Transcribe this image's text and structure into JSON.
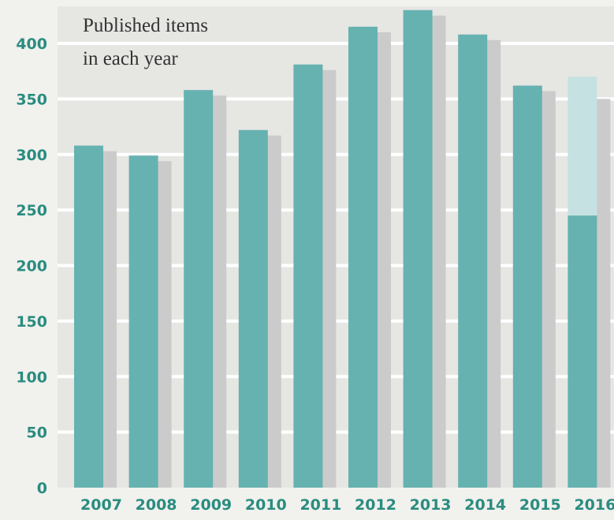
{
  "chart_data": {
    "type": "bar",
    "title_lines": [
      "Published items",
      "in each year"
    ],
    "xlabel": "",
    "ylabel": "",
    "categories": [
      "2007",
      "2008",
      "2009",
      "2010",
      "2011",
      "2012",
      "2013",
      "2014",
      "2015",
      "2016"
    ],
    "series": [
      {
        "values": [
          308,
          299,
          358,
          322,
          381,
          415,
          430,
          408,
          362,
          245
        ]
      }
    ],
    "partial_year_projection": {
      "category": "2016",
      "value": 370
    },
    "ylim": [
      0,
      430
    ],
    "yticks": [
      0,
      50,
      100,
      150,
      200,
      250,
      300,
      350,
      400
    ],
    "grid": true,
    "legend": "none",
    "colors": {
      "bar": "#66b2b0",
      "bar_shadow": "#cbcbcb",
      "projection": "#c6e1e1",
      "grid": "#ffffff",
      "plot_background": "#e6e6e3",
      "page_background": "#f1f1ed",
      "tick_text": "#2a8c80",
      "title_text": "#333333"
    }
  }
}
